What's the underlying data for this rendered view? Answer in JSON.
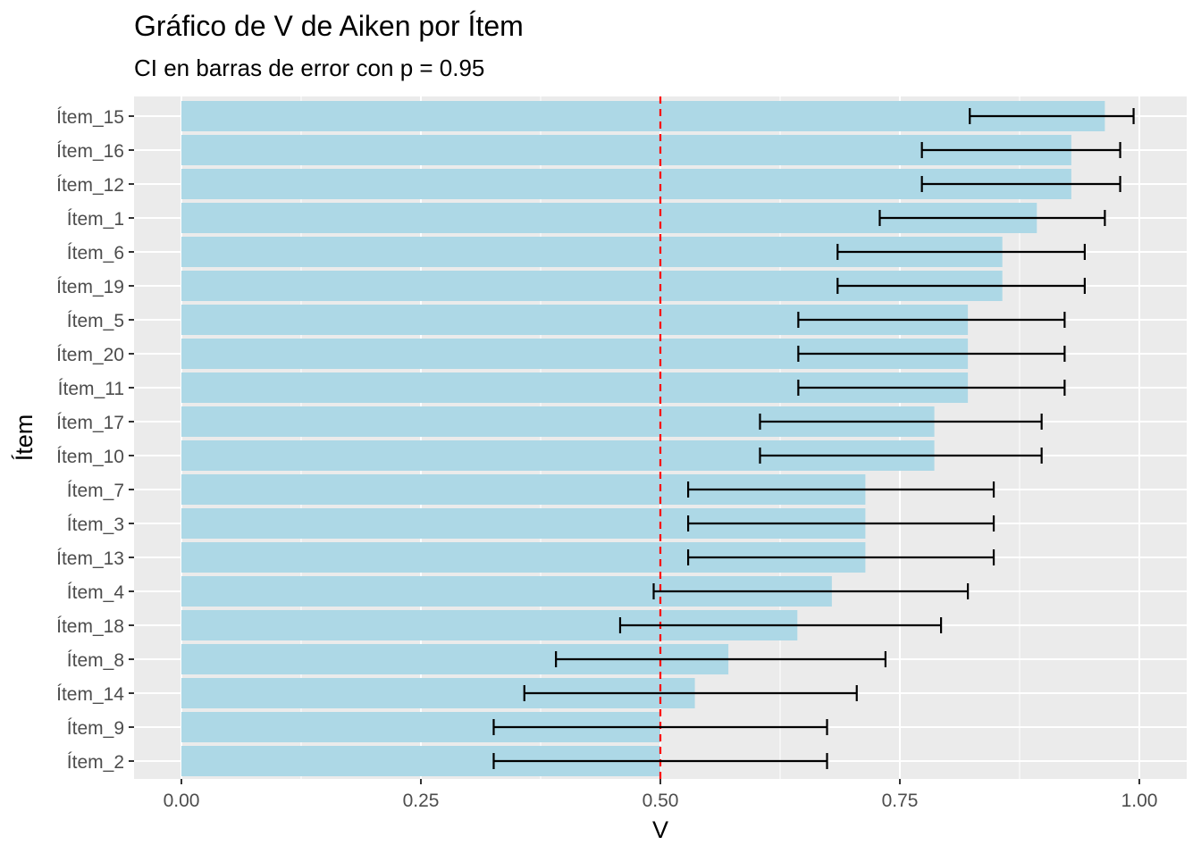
{
  "chart_data": {
    "type": "bar",
    "orientation": "horizontal",
    "title": "Gráfico de V de Aiken por Ítem",
    "subtitle": "CI en barras de error con p = 0.95",
    "xlabel": "V",
    "ylabel": "Ítem",
    "xlim": [
      0,
      1
    ],
    "xticks": [
      "0.00",
      "0.25",
      "0.50",
      "0.75",
      "1.00"
    ],
    "grid": true,
    "bar_color": "#ADD8E6",
    "reference_line": {
      "value": 0.5,
      "color": "#FF0000",
      "style": "dashed"
    },
    "categories": [
      "Ítem_15",
      "Ítem_16",
      "Ítem_12",
      "Ítem_1",
      "Ítem_6",
      "Ítem_19",
      "Ítem_5",
      "Ítem_20",
      "Ítem_11",
      "Ítem_17",
      "Ítem_10",
      "Ítem_7",
      "Ítem_3",
      "Ítem_13",
      "Ítem_4",
      "Ítem_18",
      "Ítem_8",
      "Ítem_14",
      "Ítem_9",
      "Ítem_2"
    ],
    "values": [
      0.964,
      0.929,
      0.929,
      0.893,
      0.857,
      0.857,
      0.821,
      0.821,
      0.821,
      0.786,
      0.786,
      0.714,
      0.714,
      0.714,
      0.679,
      0.643,
      0.571,
      0.536,
      0.5,
      0.5
    ],
    "ci_lower": [
      0.823,
      0.773,
      0.773,
      0.729,
      0.685,
      0.685,
      0.644,
      0.644,
      0.644,
      0.604,
      0.604,
      0.529,
      0.529,
      0.529,
      0.493,
      0.458,
      0.391,
      0.358,
      0.326,
      0.326
    ],
    "ci_upper": [
      0.994,
      0.98,
      0.98,
      0.964,
      0.943,
      0.943,
      0.922,
      0.922,
      0.922,
      0.898,
      0.898,
      0.848,
      0.848,
      0.848,
      0.821,
      0.793,
      0.735,
      0.705,
      0.674,
      0.674
    ]
  }
}
